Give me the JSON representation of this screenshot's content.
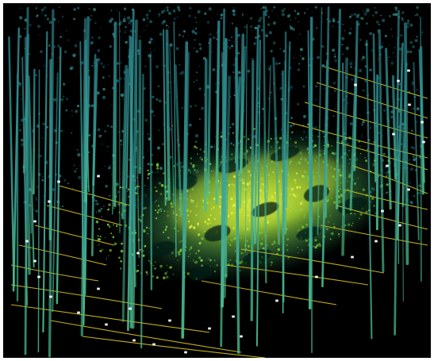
{
  "image": {
    "subject": "lidar-point-cloud-forest-plot",
    "background_color": "#000000",
    "border_color": "#ffffff",
    "palette": {
      "stem_teal": "#2d8f8f",
      "crown_teal": "#1f6f78",
      "ground_green": "#7ad13a",
      "ground_yellow": "#e6f23a",
      "grid_line": "#d9c21a",
      "marker": "#ffffff"
    }
  }
}
